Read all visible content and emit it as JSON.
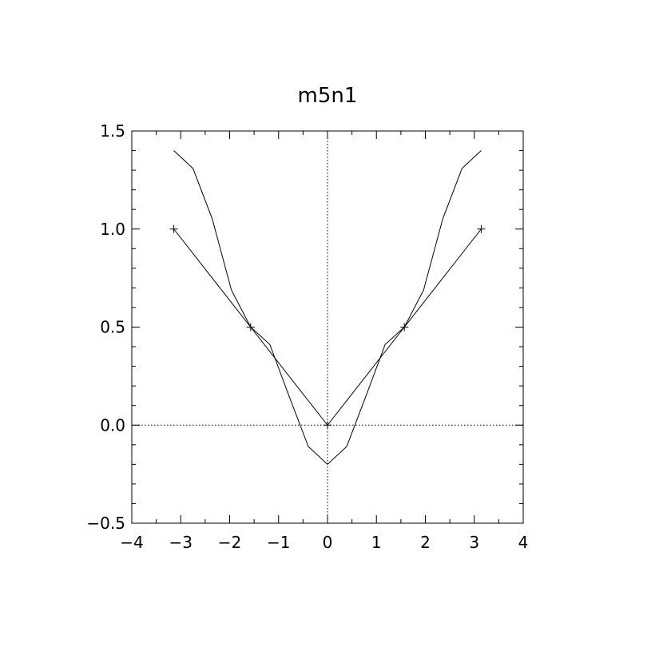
{
  "chart_data": {
    "type": "line",
    "title": "m5n1",
    "xlabel": "",
    "ylabel": "",
    "xlim": [
      -4,
      4
    ],
    "ylim": [
      -0.5,
      1.5
    ],
    "grid": false,
    "x_ticks": [
      -4,
      -3,
      -2,
      -1,
      0,
      1,
      2,
      3,
      4
    ],
    "x_tick_labels": [
      "−4",
      "−3",
      "−2",
      "−1",
      "0",
      "1",
      "2",
      "3",
      "4"
    ],
    "y_ticks": [
      -0.5,
      0.0,
      0.5,
      1.0,
      1.5
    ],
    "y_tick_labels": [
      "−0.5",
      "0.0",
      "0.5",
      "1.0",
      "1.5"
    ],
    "reference_lines": {
      "x": 0,
      "y": 0,
      "style": "dotted"
    },
    "series": [
      {
        "style": "solid-line",
        "x": [
          -3.1416,
          -2.7489,
          -2.3562,
          -1.9635,
          -1.5708,
          -1.1781,
          -0.7854,
          -0.3927,
          0,
          0.3927,
          0.7854,
          1.1781,
          1.5708,
          1.9635,
          2.3562,
          2.7489,
          3.1416
        ],
        "y": [
          1.4,
          1.3088,
          1.0522,
          0.6885,
          0.5,
          0.4115,
          0.1478,
          -0.1088,
          -0.2,
          -0.1088,
          0.1478,
          0.4115,
          0.5,
          0.6885,
          1.0522,
          1.3088,
          1.4
        ]
      },
      {
        "style": "line-with-plus-markers",
        "x": [
          -3.1416,
          -1.5708,
          0,
          1.5708,
          3.1416
        ],
        "y": [
          1.0,
          0.5,
          0.0,
          0.5,
          1.0
        ]
      }
    ]
  }
}
